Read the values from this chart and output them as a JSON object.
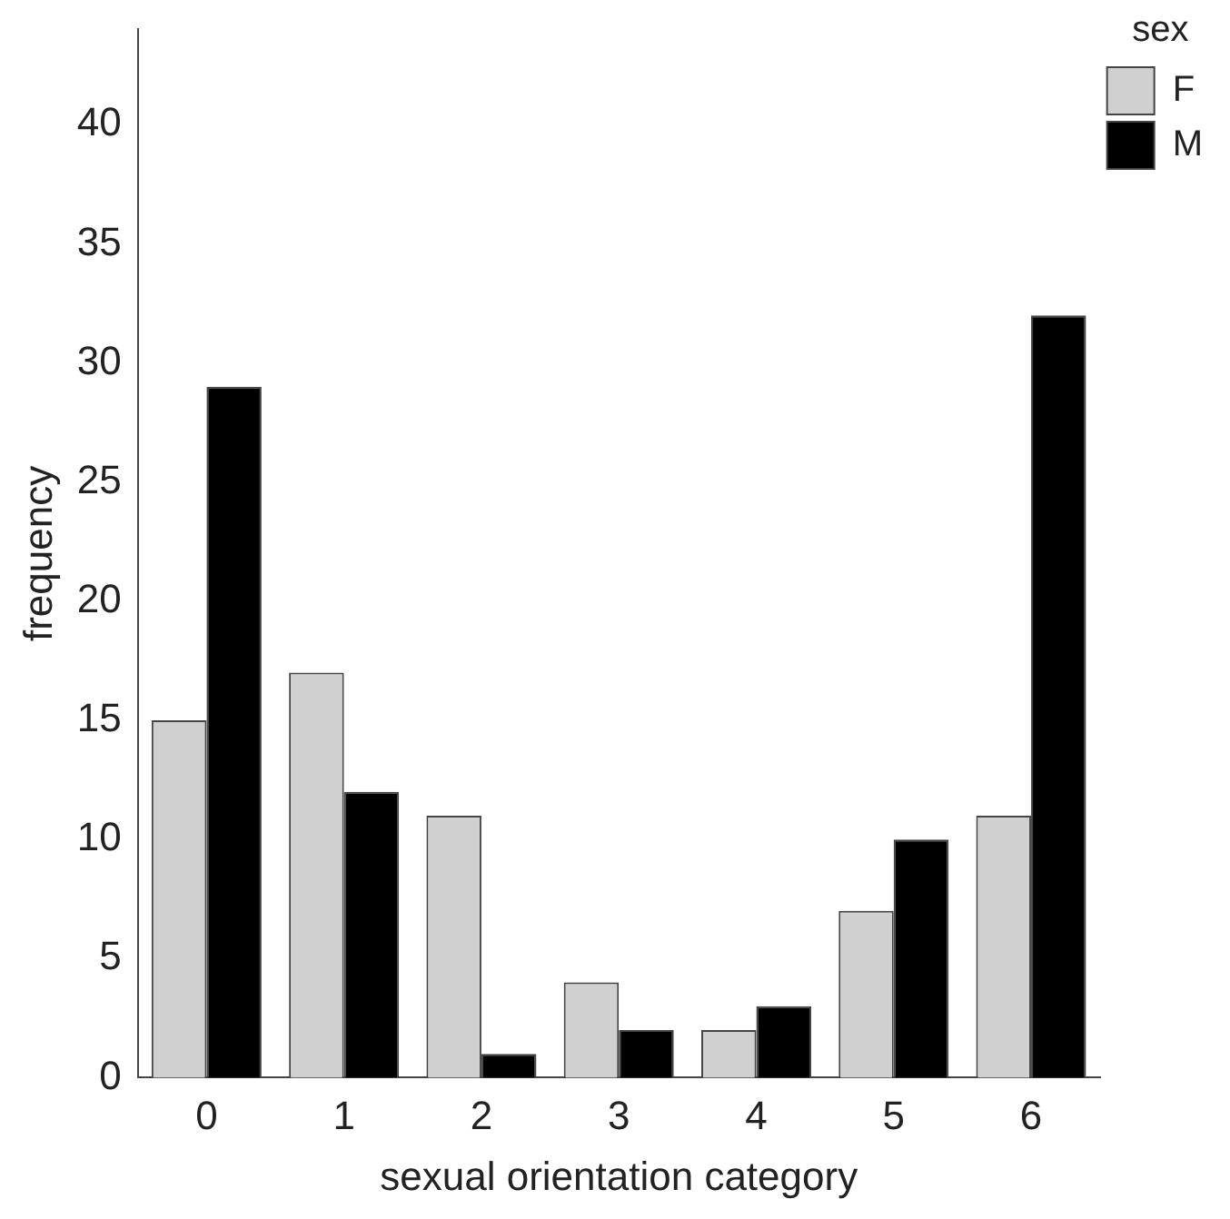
{
  "chart_data": {
    "type": "bar",
    "xlabel": "sexual orientation category",
    "ylabel": "frequency",
    "legend_title": "sex",
    "categories": [
      "0",
      "1",
      "2",
      "3",
      "4",
      "5",
      "6"
    ],
    "series": [
      {
        "name": "F",
        "color": "#d0d0d0",
        "values": [
          15,
          17,
          11,
          4,
          2,
          7,
          11
        ]
      },
      {
        "name": "M",
        "color": "#000000",
        "values": [
          29,
          12,
          1,
          2,
          3,
          10,
          32
        ]
      }
    ],
    "ylim": [
      0,
      44
    ],
    "yticks": [
      0,
      5,
      10,
      15,
      20,
      25,
      30,
      35,
      40
    ],
    "grid": false,
    "legend": "top right"
  }
}
